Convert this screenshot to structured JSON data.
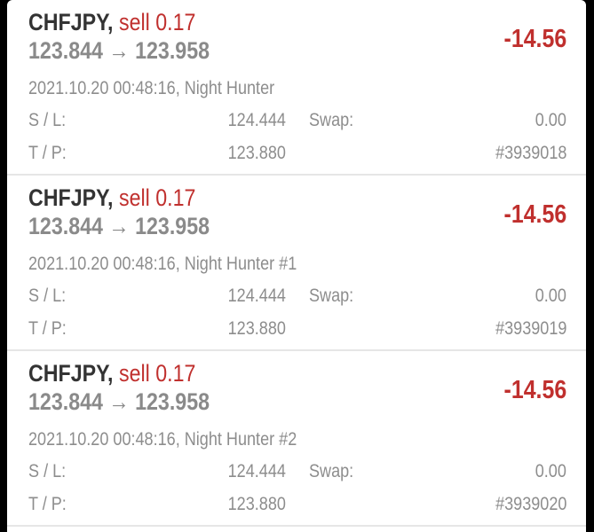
{
  "labels": {
    "sl": "S / L:",
    "tp": "T / P:",
    "swap": "Swap:",
    "arrow": "→"
  },
  "colors": {
    "loss": "#c0302e",
    "symbol": "#333333",
    "muted": "#8d8d8d"
  },
  "orders": [
    {
      "symbol": "CHFJPY,",
      "side": "sell 0.17",
      "open": "123.844",
      "current": "123.958",
      "profit": "-14.56",
      "time": "2021.10.20 00:48:16, Night Hunter",
      "sl": "124.444",
      "tp": "123.880",
      "swap": "0.00",
      "ticket": "#3939018"
    },
    {
      "symbol": "CHFJPY,",
      "side": "sell 0.17",
      "open": "123.844",
      "current": "123.958",
      "profit": "-14.56",
      "time": "2021.10.20 00:48:16, Night Hunter #1",
      "sl": "124.444",
      "tp": "123.880",
      "swap": "0.00",
      "ticket": "#3939019"
    },
    {
      "symbol": "CHFJPY,",
      "side": "sell 0.17",
      "open": "123.844",
      "current": "123.958",
      "profit": "-14.56",
      "time": "2021.10.20 00:48:16, Night Hunter #2",
      "sl": "124.444",
      "tp": "123.880",
      "swap": "0.00",
      "ticket": "#3939020"
    }
  ]
}
